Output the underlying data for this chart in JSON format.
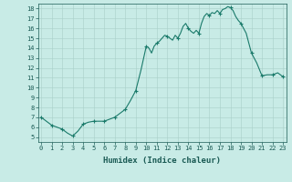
{
  "x": [
    0,
    0.5,
    1,
    1.5,
    2,
    2.5,
    3,
    3.5,
    4,
    4.5,
    5,
    5.5,
    6,
    6.5,
    7,
    7.5,
    8,
    8.5,
    9,
    9.5,
    10,
    10.25,
    10.5,
    10.75,
    11,
    11.25,
    11.5,
    11.75,
    12,
    12.25,
    12.5,
    12.75,
    13,
    13.25,
    13.5,
    13.75,
    14,
    14.25,
    14.5,
    14.75,
    15,
    15.25,
    15.5,
    15.75,
    16,
    16.25,
    16.5,
    16.75,
    17,
    17.25,
    17.5,
    17.75,
    18,
    18.25,
    18.5,
    18.75,
    19,
    19.5,
    20,
    20.5,
    21,
    21.5,
    22,
    22.5,
    23
  ],
  "y": [
    7.0,
    6.6,
    6.2,
    6.0,
    5.8,
    5.4,
    5.1,
    5.6,
    6.3,
    6.5,
    6.6,
    6.6,
    6.6,
    6.8,
    7.0,
    7.4,
    7.8,
    8.7,
    9.7,
    11.8,
    14.2,
    14.0,
    13.5,
    14.2,
    14.5,
    14.7,
    15.0,
    15.3,
    15.2,
    15.0,
    14.8,
    15.3,
    15.0,
    15.5,
    16.2,
    16.5,
    16.0,
    15.7,
    15.5,
    15.8,
    15.5,
    16.5,
    17.2,
    17.5,
    17.3,
    17.6,
    17.5,
    17.8,
    17.5,
    17.9,
    18.0,
    18.2,
    18.1,
    17.8,
    17.2,
    16.8,
    16.5,
    15.5,
    13.5,
    12.5,
    11.2,
    11.3,
    11.3,
    11.5,
    11.1
  ],
  "marker_x": [
    0,
    1,
    2,
    3,
    4,
    5,
    6,
    7,
    8,
    9,
    10,
    11,
    12,
    13,
    14,
    15,
    16,
    17,
    18,
    19,
    20,
    21,
    22,
    23
  ],
  "marker_y": [
    7.0,
    6.2,
    5.8,
    5.1,
    6.3,
    6.6,
    6.6,
    7.0,
    7.8,
    9.7,
    14.2,
    14.5,
    15.2,
    15.0,
    16.0,
    15.5,
    17.3,
    17.5,
    18.1,
    16.5,
    13.5,
    11.2,
    11.3,
    11.1
  ],
  "xlabel": "Humidex (Indice chaleur)",
  "ylim_min": 4.5,
  "ylim_max": 18.5,
  "xlim_min": -0.3,
  "xlim_max": 23.3,
  "yticks": [
    5,
    6,
    7,
    8,
    9,
    10,
    11,
    12,
    13,
    14,
    15,
    16,
    17,
    18
  ],
  "xticks": [
    0,
    1,
    2,
    3,
    4,
    5,
    6,
    7,
    8,
    9,
    10,
    11,
    12,
    13,
    14,
    15,
    16,
    17,
    18,
    19,
    20,
    21,
    22,
    23
  ],
  "line_color": "#1a7a6a",
  "marker_color": "#1a7a6a",
  "bg_color": "#c8ebe6",
  "grid_color": "#a8cfc9",
  "font_color": "#1a5a54",
  "tick_fontsize": 5.0,
  "xlabel_fontsize": 6.5
}
